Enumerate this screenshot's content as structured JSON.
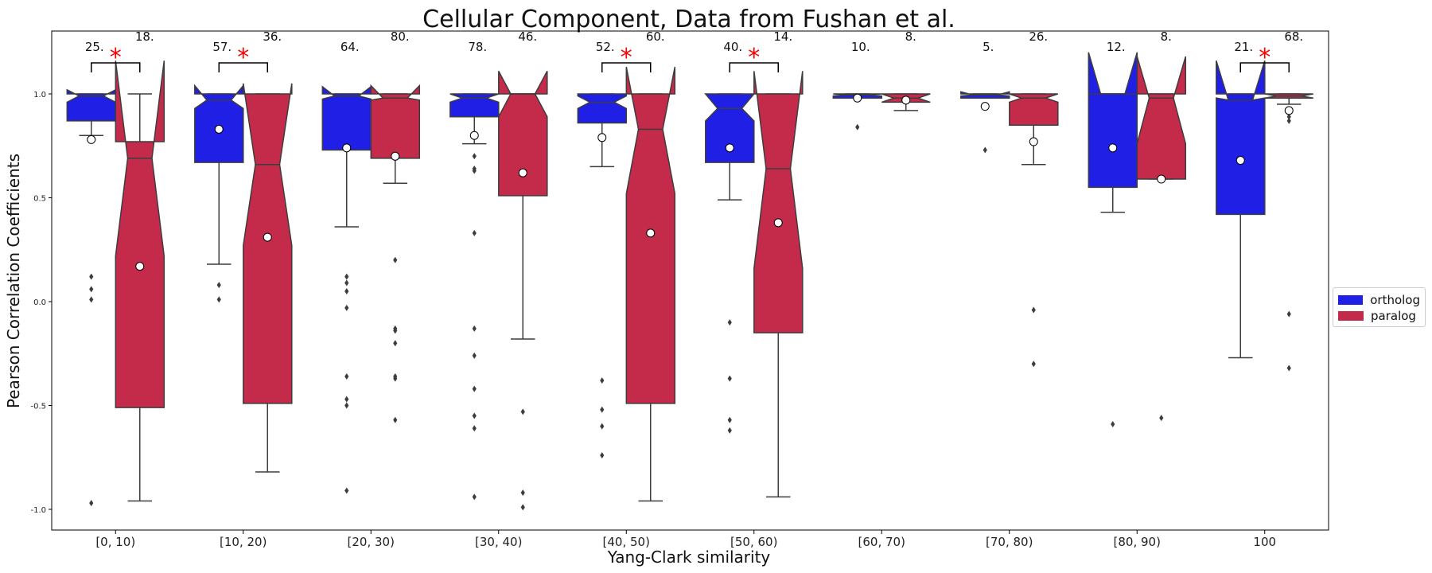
{
  "chart_data": {
    "type": "box",
    "title": "Cellular Component, Data from Fushan et al.",
    "xlabel": "Yang-Clark similarity",
    "ylabel": "Pearson Correlation Coefficients",
    "ylim": [
      -1.1,
      1.3
    ],
    "yticks": [
      "-1.0",
      "-0.5",
      "0.0",
      "0.5",
      "1.0"
    ],
    "categories": [
      "[0, 10)",
      "[10, 20)",
      "[20, 30)",
      "[30, 40)",
      "[40, 50)",
      "[50, 60)",
      "[60, 70)",
      "[70, 80)",
      "[80, 90)",
      "100"
    ],
    "series": [
      {
        "name": "ortholog",
        "color": "#1f1fe6",
        "counts": [
          "25.",
          "57.",
          "64.",
          "78.",
          "52.",
          "40.",
          "10.",
          "5.",
          "12.",
          "21."
        ],
        "boxes": [
          {
            "q1": 0.87,
            "median": 0.99,
            "q3": 1.0,
            "whislo": 0.8,
            "whishi": 1.0,
            "notchlo": 0.96,
            "notchhi": 1.02,
            "mean": 0.78,
            "fliers": [
              0.12,
              0.06,
              0.01,
              -0.97
            ]
          },
          {
            "q1": 0.67,
            "median": 0.97,
            "q3": 1.0,
            "whislo": 0.18,
            "whishi": 1.0,
            "notchlo": 0.93,
            "notchhi": 1.04,
            "mean": 0.83,
            "fliers": [
              0.08,
              0.01
            ]
          },
          {
            "q1": 0.73,
            "median": 0.99,
            "q3": 1.0,
            "whislo": 0.36,
            "whishi": 1.0,
            "notchlo": 0.975,
            "notchhi": 1.035,
            "mean": 0.74,
            "fliers": [
              0.12,
              0.09,
              0.05,
              -0.03,
              -0.36,
              -0.47,
              -0.5,
              -0.91
            ]
          },
          {
            "q1": 0.89,
            "median": 0.98,
            "q3": 1.0,
            "whislo": 0.76,
            "whishi": 1.0,
            "notchlo": 0.96,
            "notchhi": 1.0,
            "mean": 0.8,
            "fliers": [
              0.7,
              0.64,
              0.63,
              0.33,
              -0.13,
              -0.26,
              -0.42,
              -0.55,
              -0.61,
              -0.94
            ]
          },
          {
            "q1": 0.86,
            "median": 0.96,
            "q3": 1.0,
            "whislo": 0.65,
            "whishi": 1.0,
            "notchlo": 0.93,
            "notchhi": 0.99,
            "mean": 0.79,
            "fliers": [
              -0.38,
              -0.52,
              -0.6,
              -0.74
            ]
          },
          {
            "q1": 0.67,
            "median": 0.93,
            "q3": 1.0,
            "whislo": 0.49,
            "whishi": 1.0,
            "notchlo": 0.87,
            "notchhi": 1.0,
            "mean": 0.74,
            "fliers": [
              -0.1,
              -0.37,
              -0.57,
              -0.62
            ]
          },
          {
            "q1": 0.98,
            "median": 0.995,
            "q3": 1.0,
            "whislo": 0.98,
            "whishi": 1.0,
            "notchlo": 0.99,
            "notchhi": 1.0,
            "mean": 0.98,
            "fliers": [
              0.84
            ]
          },
          {
            "q1": 0.98,
            "median": 0.995,
            "q3": 1.0,
            "whislo": 0.98,
            "whishi": 1.0,
            "notchlo": 0.99,
            "notchhi": 1.01,
            "mean": 0.94,
            "fliers": [
              0.73
            ]
          },
          {
            "q1": 0.55,
            "median": 1.0,
            "q3": 1.0,
            "whislo": 0.43,
            "whishi": 1.0,
            "notchlo": 1.0,
            "notchhi": 1.2,
            "mean": 0.74,
            "fliers": [
              -0.59
            ]
          },
          {
            "q1": 0.42,
            "median": 0.97,
            "q3": 1.0,
            "whislo": -0.27,
            "whishi": 1.0,
            "notchlo": 0.98,
            "notchhi": 1.16,
            "mean": 0.68,
            "fliers": []
          }
        ]
      },
      {
        "name": "paralog",
        "color": "#c42a4a",
        "counts": [
          "18.",
          "36.",
          "80.",
          "46.",
          "60.",
          "14.",
          "8.",
          "26.",
          "8.",
          "68."
        ],
        "boxes": [
          {
            "q1": -0.51,
            "median": 0.69,
            "q3": 0.77,
            "whislo": -0.96,
            "whishi": 1.0,
            "notchlo": 0.22,
            "notchhi": 1.16,
            "mean": 0.17,
            "fliers": []
          },
          {
            "q1": -0.49,
            "median": 0.66,
            "q3": 1.0,
            "whislo": -0.82,
            "whishi": 1.0,
            "notchlo": 0.27,
            "notchhi": 1.05,
            "mean": 0.31,
            "fliers": []
          },
          {
            "q1": 0.69,
            "median": 0.98,
            "q3": 1.0,
            "whislo": 0.57,
            "whishi": 1.0,
            "notchlo": 0.97,
            "notchhi": 1.04,
            "mean": 0.7,
            "fliers": [
              0.2,
              -0.13,
              -0.14,
              -0.2,
              -0.36,
              -0.37,
              -0.57
            ]
          },
          {
            "q1": 0.51,
            "median": 1.0,
            "q3": 1.0,
            "whislo": -0.18,
            "whishi": 1.0,
            "notchlo": 0.89,
            "notchhi": 1.11,
            "mean": 0.62,
            "fliers": [
              -0.53,
              -0.92,
              -0.99
            ]
          },
          {
            "q1": -0.49,
            "median": 0.83,
            "q3": 1.0,
            "whislo": -0.96,
            "whishi": 1.0,
            "notchlo": 0.52,
            "notchhi": 1.13,
            "mean": 0.33,
            "fliers": []
          },
          {
            "q1": -0.15,
            "median": 0.64,
            "q3": 1.0,
            "whislo": -0.94,
            "whishi": 1.0,
            "notchlo": 0.16,
            "notchhi": 1.11,
            "mean": 0.38,
            "fliers": []
          },
          {
            "q1": 0.96,
            "median": 0.98,
            "q3": 1.0,
            "whislo": 0.92,
            "whishi": 1.0,
            "notchlo": 0.96,
            "notchhi": 1.0,
            "mean": 0.97,
            "fliers": []
          },
          {
            "q1": 0.85,
            "median": 0.98,
            "q3": 1.0,
            "whislo": 0.66,
            "whishi": 1.0,
            "notchlo": 0.96,
            "notchhi": 1.0,
            "mean": 0.77,
            "fliers": [
              -0.04,
              -0.3
            ]
          },
          {
            "q1": 0.59,
            "median": 0.98,
            "q3": 1.0,
            "whislo": 0.59,
            "whishi": 1.0,
            "notchlo": 0.76,
            "notchhi": 1.18,
            "mean": 0.59,
            "fliers": [
              -0.56
            ]
          },
          {
            "q1": 0.98,
            "median": 0.99,
            "q3": 1.0,
            "whislo": 0.95,
            "whishi": 1.0,
            "notchlo": 0.98,
            "notchhi": 1.0,
            "mean": 0.92,
            "fliers": [
              0.89,
              0.87,
              -0.06,
              -0.32
            ]
          }
        ]
      }
    ],
    "significance": [
      true,
      true,
      false,
      false,
      true,
      true,
      false,
      false,
      false,
      true
    ],
    "significance_marker": "*",
    "legend_position": "right"
  }
}
